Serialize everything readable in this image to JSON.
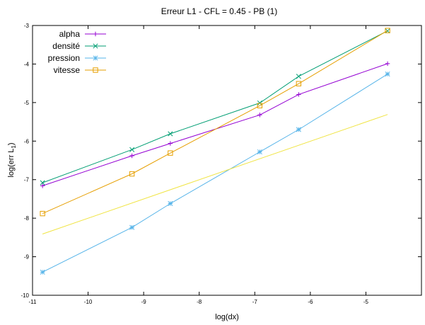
{
  "chart_data": {
    "type": "line",
    "title": "Erreur L1 - CFL = 0.45 - PB (1)",
    "xlabel": "log(dx)",
    "ylabel_main": "log(err L",
    "ylabel_sub": "1",
    "ylabel_close": ")",
    "xlim": [
      -11,
      -4
    ],
    "ylim": [
      -10,
      -3
    ],
    "xticks": [
      "-11",
      "-10",
      "-9",
      "-8",
      "-7",
      "-6",
      "-5"
    ],
    "yticks": [
      "-10",
      "-9",
      "-8",
      "-7",
      "-6",
      "-5",
      "-4",
      "-3"
    ],
    "grid": false,
    "legend_position": "top-left",
    "series": [
      {
        "name": "alpha",
        "color": "#9400d3",
        "marker": "plus",
        "x": [
          -10.82,
          -9.21,
          -8.52,
          -6.91,
          -6.21,
          -4.61
        ],
        "y": [
          -7.16,
          -6.38,
          -6.06,
          -5.32,
          -4.79,
          -3.99
        ]
      },
      {
        "name": "densité",
        "color": "#009e73",
        "marker": "cross",
        "x": [
          -10.82,
          -9.21,
          -8.52,
          -6.91,
          -6.21,
          -4.61
        ],
        "y": [
          -7.08,
          -6.22,
          -5.81,
          -5.01,
          -4.32,
          -3.14
        ]
      },
      {
        "name": "pression",
        "color": "#56b4e9",
        "marker": "star",
        "x": [
          -10.82,
          -9.21,
          -8.52,
          -6.91,
          -6.21,
          -4.61
        ],
        "y": [
          -9.4,
          -8.24,
          -7.62,
          -6.28,
          -5.7,
          -4.26
        ]
      },
      {
        "name": "vitesse",
        "color": "#e69f00",
        "marker": "square",
        "x": [
          -10.82,
          -9.21,
          -8.52,
          -6.91,
          -6.21,
          -4.61
        ],
        "y": [
          -7.88,
          -6.85,
          -6.31,
          -5.08,
          -4.51,
          -3.13
        ]
      },
      {
        "name": "",
        "color": "#f0e442",
        "marker": "none",
        "x": [
          -10.82,
          -4.61
        ],
        "y": [
          -8.41,
          -5.31
        ]
      }
    ]
  }
}
